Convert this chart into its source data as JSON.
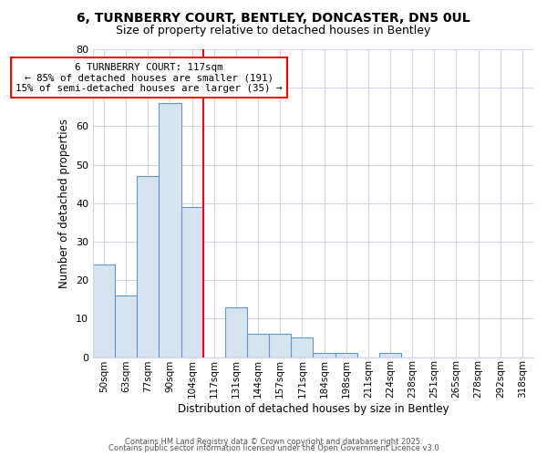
{
  "title1": "6, TURNBERRY COURT, BENTLEY, DONCASTER, DN5 0UL",
  "title2": "Size of property relative to detached houses in Bentley",
  "xlabel": "Distribution of detached houses by size in Bentley",
  "ylabel": "Number of detached properties",
  "categories": [
    "50sqm",
    "63sqm",
    "77sqm",
    "90sqm",
    "104sqm",
    "117sqm",
    "131sqm",
    "144sqm",
    "157sqm",
    "171sqm",
    "184sqm",
    "198sqm",
    "211sqm",
    "224sqm",
    "238sqm",
    "251sqm",
    "265sqm",
    "278sqm",
    "292sqm",
    "318sqm"
  ],
  "values": [
    24,
    16,
    47,
    66,
    39,
    0,
    13,
    6,
    6,
    5,
    1,
    1,
    0,
    1,
    0,
    0,
    0,
    0,
    0,
    0
  ],
  "bar_color": "#d6e4f0",
  "bar_edge_color": "#5b9bd5",
  "red_line_index": 5,
  "annotation_text": "6 TURNBERRY COURT: 117sqm\n← 85% of detached houses are smaller (191)\n15% of semi-detached houses are larger (35) →",
  "annotation_box_color": "white",
  "annotation_box_edge_color": "red",
  "red_line_color": "red",
  "ylim": [
    0,
    80
  ],
  "yticks": [
    0,
    10,
    20,
    30,
    40,
    50,
    60,
    70,
    80
  ],
  "background_color": "#ffffff",
  "grid_color": "#d0d8e8",
  "footnote1": "Contains HM Land Registry data © Crown copyright and database right 2025.",
  "footnote2": "Contains public sector information licensed under the Open Government Licence v3.0"
}
